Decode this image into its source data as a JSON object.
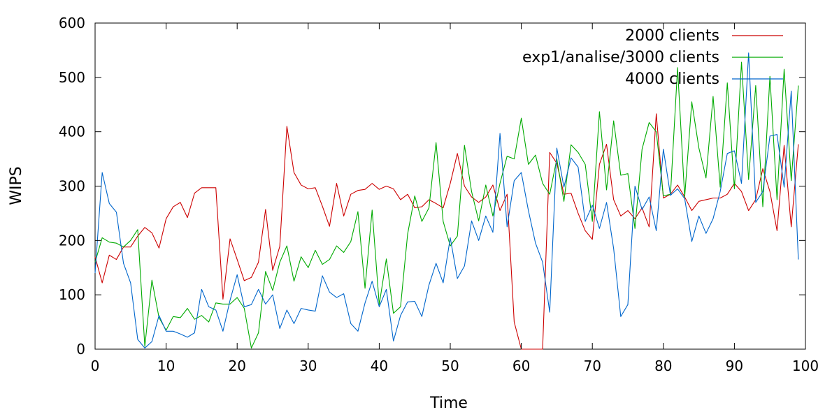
{
  "chart_data": {
    "type": "line",
    "title": "",
    "xlabel": "Time",
    "ylabel": "WIPS",
    "xlim": [
      0,
      100
    ],
    "ylim": [
      0,
      600
    ],
    "xticks": [
      0,
      10,
      20,
      30,
      40,
      50,
      60,
      70,
      80,
      90,
      100
    ],
    "yticks": [
      0,
      100,
      200,
      300,
      400,
      500,
      600
    ],
    "grid": false,
    "legend": "top-right",
    "x": [
      0,
      1,
      2,
      3,
      4,
      5,
      6,
      7,
      8,
      9,
      10,
      11,
      12,
      13,
      14,
      15,
      16,
      17,
      18,
      19,
      20,
      21,
      22,
      23,
      24,
      25,
      26,
      27,
      28,
      29,
      30,
      31,
      32,
      33,
      34,
      35,
      36,
      37,
      38,
      39,
      40,
      41,
      42,
      43,
      44,
      45,
      46,
      47,
      48,
      49,
      50,
      51,
      52,
      53,
      54,
      55,
      56,
      57,
      58,
      59,
      60,
      61,
      62,
      63,
      64,
      65,
      66,
      67,
      68,
      69,
      70,
      71,
      72,
      73,
      74,
      75,
      76,
      77,
      78,
      79,
      80,
      81,
      82,
      83,
      84,
      85,
      86,
      87,
      88,
      89,
      90,
      91,
      92,
      93,
      94,
      95,
      96,
      97,
      98,
      99
    ],
    "series": [
      {
        "name": "2000 clients",
        "color": "#cc0000",
        "values": [
          170,
          122,
          173,
          165,
          188,
          188,
          208,
          224,
          214,
          186,
          240,
          262,
          270,
          242,
          287,
          297,
          297,
          297,
          92,
          203,
          165,
          126,
          132,
          160,
          257,
          145,
          189,
          410,
          325,
          302,
          295,
          297,
          263,
          226,
          305,
          245,
          285,
          292,
          294,
          305,
          294,
          300,
          295,
          275,
          285,
          260,
          262,
          275,
          268,
          260,
          305,
          360,
          300,
          280,
          270,
          280,
          302,
          255,
          285,
          50,
          0,
          0,
          0,
          0,
          362,
          342,
          285,
          287,
          250,
          218,
          202,
          340,
          377,
          275,
          245,
          255,
          240,
          260,
          225,
          433,
          278,
          285,
          302,
          280,
          255,
          272,
          275,
          278,
          278,
          285,
          305,
          290,
          255,
          275,
          332,
          290,
          218,
          375,
          225,
          377
        ]
      },
      {
        "name": "exp1/analise/3000 clients",
        "color": "#00aa00",
        "values": [
          160,
          205,
          197,
          195,
          188,
          200,
          220,
          5,
          127,
          58,
          35,
          60,
          58,
          75,
          55,
          62,
          50,
          85,
          83,
          83,
          95,
          75,
          2,
          30,
          143,
          108,
          160,
          190,
          125,
          170,
          150,
          182,
          156,
          165,
          190,
          178,
          198,
          253,
          112,
          256,
          82,
          166,
          66,
          78,
          212,
          282,
          235,
          260,
          380,
          235,
          190,
          208,
          375,
          290,
          236,
          302,
          245,
          305,
          355,
          350,
          425,
          340,
          357,
          305,
          285,
          350,
          272,
          376,
          362,
          340,
          235,
          437,
          293,
          420,
          320,
          323,
          222,
          368,
          417,
          400,
          282,
          285,
          518,
          280,
          455,
          370,
          315,
          465,
          298,
          490,
          295,
          528,
          312,
          485,
          262,
          502,
          275,
          515,
          310,
          485
        ]
      },
      {
        "name": "4000 clients",
        "color": "#0066cc",
        "values": [
          140,
          325,
          268,
          252,
          158,
          122,
          18,
          2,
          14,
          62,
          33,
          33,
          28,
          22,
          30,
          110,
          78,
          72,
          33,
          90,
          137,
          78,
          82,
          110,
          83,
          100,
          38,
          72,
          47,
          75,
          72,
          70,
          135,
          105,
          95,
          102,
          47,
          33,
          85,
          125,
          78,
          110,
          15,
          62,
          87,
          88,
          60,
          118,
          158,
          122,
          205,
          130,
          153,
          236,
          200,
          245,
          215,
          397,
          225,
          310,
          325,
          255,
          195,
          160,
          68,
          370,
          298,
          352,
          335,
          235,
          265,
          222,
          270,
          185,
          60,
          82,
          300,
          257,
          280,
          218,
          368,
          283,
          295,
          277,
          198,
          245,
          213,
          240,
          290,
          360,
          365,
          305,
          545,
          270,
          290,
          392,
          395,
          298,
          475,
          165
        ]
      }
    ]
  }
}
